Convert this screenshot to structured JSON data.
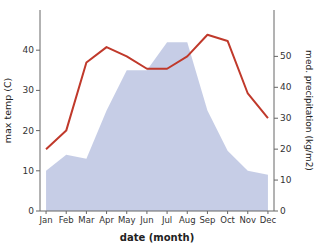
{
  "chart_data": {
    "type": "area",
    "categories": [
      "Jan",
      "Feb",
      "Mar",
      "Apr",
      "May",
      "Jun",
      "Jul",
      "Aug",
      "Sep",
      "Oct",
      "Nov",
      "Dec"
    ],
    "series": [
      {
        "type": "area",
        "color": "#b8c0e0",
        "values": [
          10,
          14,
          13,
          25,
          35,
          35,
          42,
          42,
          25,
          15,
          10,
          9
        ]
      },
      {
        "type": "line",
        "color": "#c0392b",
        "axis": "y2",
        "values": [
          20,
          26,
          48,
          53,
          50,
          46,
          46,
          50,
          57,
          55,
          38,
          30
        ]
      }
    ],
    "x_label": "date (month)",
    "y_label": "max temp (C)",
    "y2_label": "med. precipitation (kg/m2)",
    "ylim": [
      0,
      50
    ],
    "yticks": [
      0,
      10,
      20,
      30,
      40
    ],
    "y2lim": [
      0,
      65
    ],
    "y2ticks": [
      0,
      10,
      20,
      30,
      40,
      50
    ],
    "grid": false
  }
}
